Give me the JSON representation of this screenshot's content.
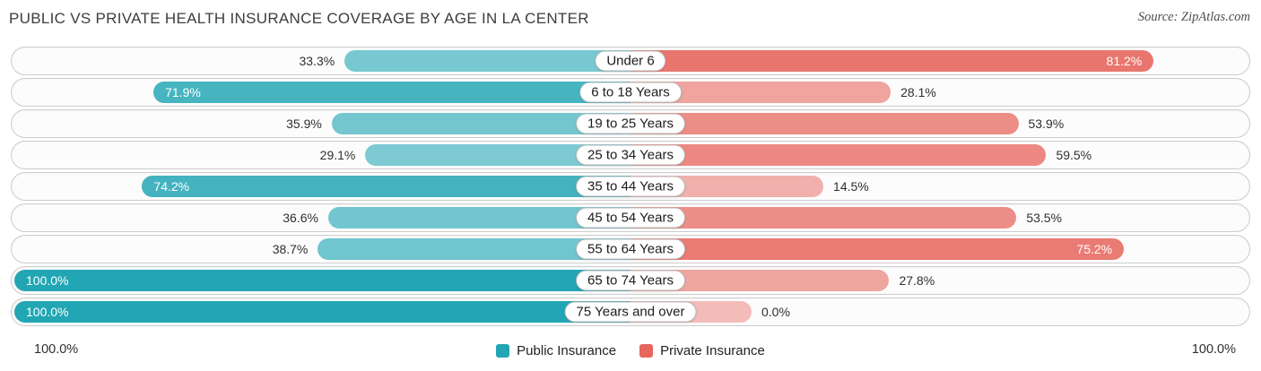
{
  "title": "PUBLIC VS PRIVATE HEALTH INSURANCE COVERAGE BY AGE IN LA CENTER",
  "source": "Source: ZipAtlas.com",
  "axis": {
    "left_label": "100.0%",
    "right_label": "100.0%"
  },
  "legend": [
    {
      "label": "Public Insurance",
      "color": "#23a6b4"
    },
    {
      "label": "Private Insurance",
      "color": "#e6655c"
    }
  ],
  "chart_data": {
    "type": "bar",
    "variant": "diverging-horizontal",
    "title": "Public vs Private Health Insurance Coverage by Age in La Center",
    "categories": [
      "Under 6",
      "6 to 18 Years",
      "19 to 25 Years",
      "25 to 34 Years",
      "35 to 44 Years",
      "45 to 54 Years",
      "55 to 64 Years",
      "65 to 74 Years",
      "75 Years and over"
    ],
    "series": [
      {
        "name": "Public Insurance",
        "side": "left",
        "color": "#23a6b4",
        "values": [
          33.3,
          71.9,
          35.9,
          29.1,
          74.2,
          36.6,
          38.7,
          100.0,
          100.0
        ]
      },
      {
        "name": "Private Insurance",
        "side": "right",
        "color": "#e6655c",
        "values": [
          81.2,
          28.1,
          53.9,
          59.5,
          14.5,
          53.5,
          75.2,
          27.8,
          0.0
        ]
      }
    ],
    "value_format": "percent",
    "axis_max": 100.0,
    "legend_position": "bottom-center",
    "grid": false
  }
}
